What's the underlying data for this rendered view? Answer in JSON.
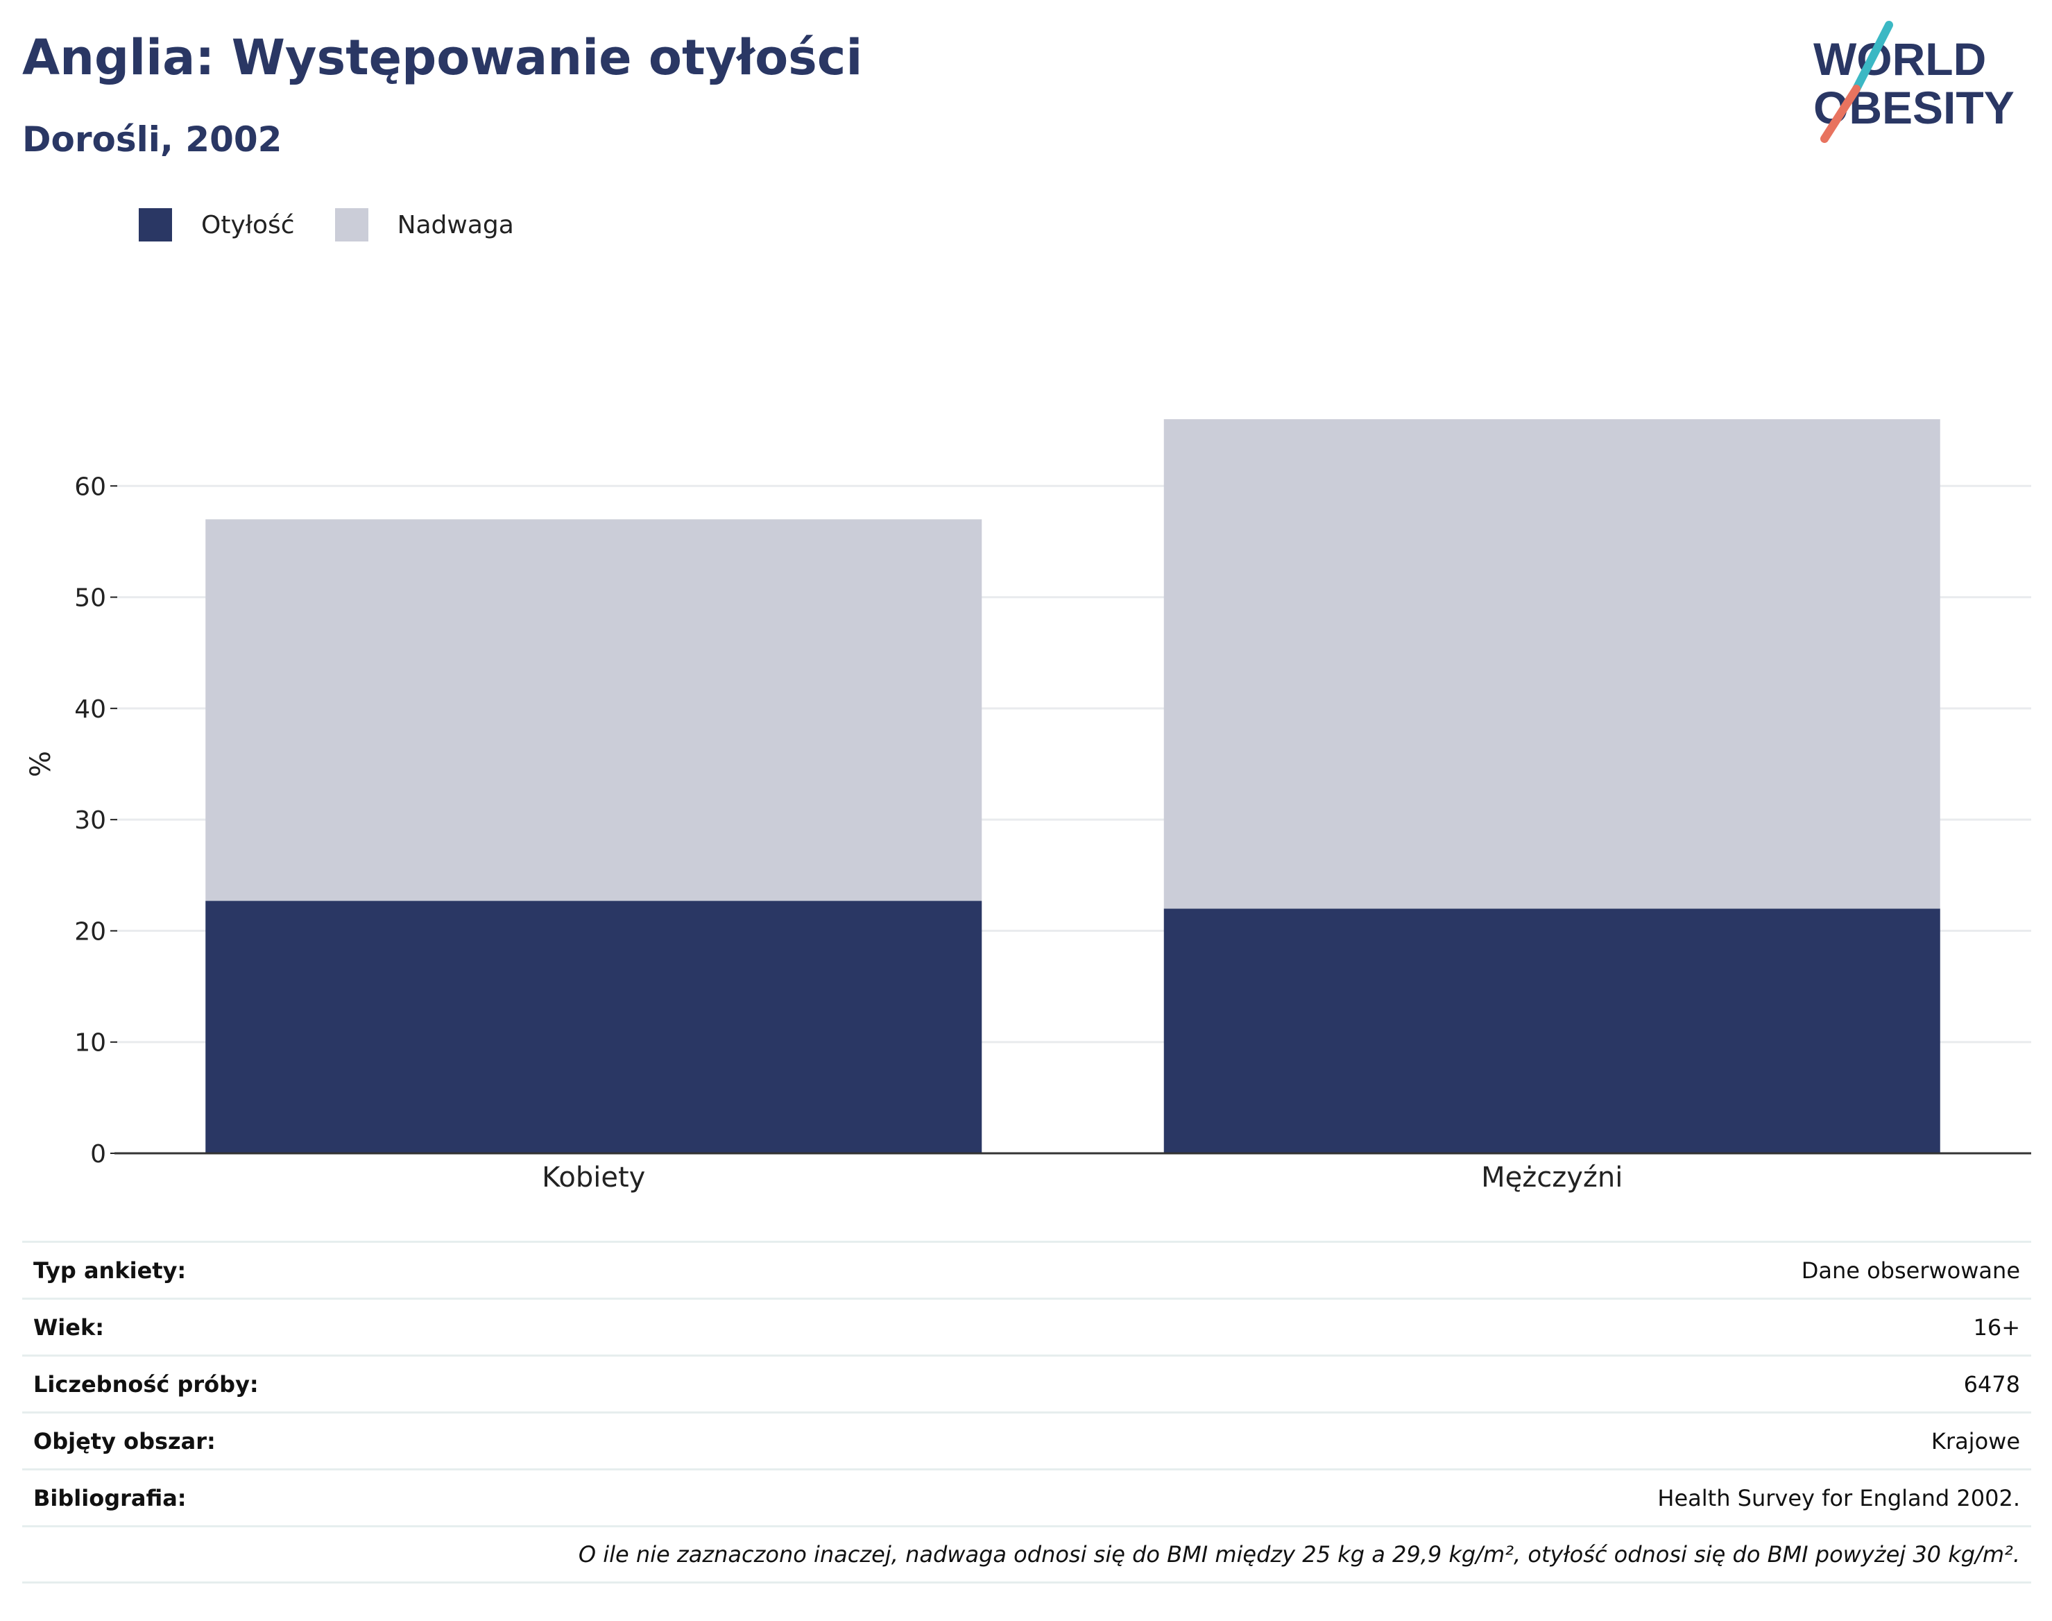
{
  "header": {
    "title": "Anglia: Występowanie otyłości",
    "subtitle": "Dorośli, 2002"
  },
  "logo": {
    "line1": "WORLD",
    "line2": "OBESITY",
    "colors": {
      "text": "#2a3764",
      "slash_top": "#3bb8c4",
      "slash_bottom": "#e8735f"
    }
  },
  "legend": {
    "items": [
      {
        "label": "Otyłość",
        "color": "#2a3764"
      },
      {
        "label": "Nadwaga",
        "color": "#cbcdd8"
      }
    ]
  },
  "chart_data": {
    "type": "bar",
    "stacked": true,
    "categories": [
      "Kobiety",
      "Mężczyźni"
    ],
    "series": [
      {
        "name": "Otyłość",
        "values": [
          22.7,
          22.0
        ],
        "color": "#2a3764"
      },
      {
        "name": "Nadwaga",
        "values": [
          34.3,
          44.0
        ],
        "color": "#cbcdd8"
      }
    ],
    "ylabel": "%",
    "yticks": [
      0,
      10,
      20,
      30,
      40,
      50,
      60
    ],
    "ylim": [
      0,
      70
    ],
    "grid": true
  },
  "info_table": {
    "rows": [
      {
        "key": "Typ ankiety:",
        "value": "Dane obserwowane"
      },
      {
        "key": "Wiek:",
        "value": "16+"
      },
      {
        "key": "Liczebność próby:",
        "value": "6478"
      },
      {
        "key": "Objęty obszar:",
        "value": "Krajowe"
      },
      {
        "key": "Bibliografia:",
        "value": "Health Survey for England 2002."
      }
    ],
    "note": "O ile nie zaznaczono inaczej, nadwaga odnosi się do BMI między 25 kg a 29,9 kg/m², otyłość odnosi się do BMI powyżej 30 kg/m²."
  }
}
